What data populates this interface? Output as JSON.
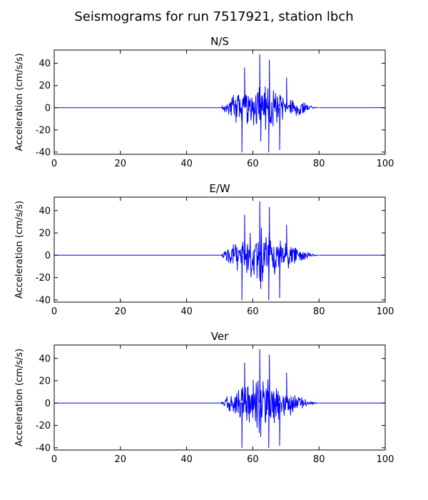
{
  "title": "Seismograms for run 7517921, station lbch",
  "chart_data": [
    {
      "type": "line",
      "title": "N/S",
      "xlabel": "",
      "ylabel": "Acceleration (cm/s/s)",
      "xlim": [
        0,
        100
      ],
      "ylim": [
        -42,
        52
      ],
      "xticks": [
        0,
        20,
        40,
        60,
        80,
        100
      ],
      "yticks": [
        -40,
        -20,
        0,
        20,
        40
      ],
      "color": "#0000ff",
      "signal": {
        "onset": 50.5,
        "end": 80,
        "peak": 48,
        "trough": -40
      }
    },
    {
      "type": "line",
      "title": "E/W",
      "xlabel": "",
      "ylabel": "Acceleration (cm/s/s)",
      "xlim": [
        0,
        100
      ],
      "ylim": [
        -42,
        52
      ],
      "xticks": [
        0,
        20,
        40,
        60,
        80,
        100
      ],
      "yticks": [
        -40,
        -20,
        0,
        20,
        40
      ],
      "color": "#0000ff",
      "signal": {
        "onset": 50.5,
        "end": 80,
        "peak": 48,
        "trough": -40
      }
    },
    {
      "type": "line",
      "title": "Ver",
      "xlabel": "",
      "ylabel": "Acceleration (cm/s/s)",
      "xlim": [
        0,
        100
      ],
      "ylim": [
        -42,
        52
      ],
      "xticks": [
        0,
        20,
        40,
        60,
        80,
        100
      ],
      "yticks": [
        -40,
        -20,
        0,
        20,
        40
      ],
      "color": "#0000ff",
      "signal": {
        "onset": 50.5,
        "end": 80,
        "peak": 48,
        "trough": -40
      }
    }
  ]
}
